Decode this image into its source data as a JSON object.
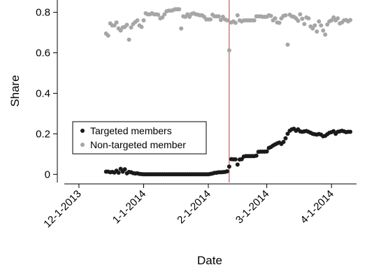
{
  "chart_data": {
    "type": "scatter",
    "xlabel": "Date",
    "ylabel": "Share",
    "x_axis_type": "date",
    "xlim": [
      "2013-11-24",
      "2014-04-13"
    ],
    "ylim": [
      -0.03,
      0.84
    ],
    "x_ticks": [
      {
        "date": "2013-12-01",
        "label": "12-1-2013"
      },
      {
        "date": "2014-01-01",
        "label": "1-1-2014"
      },
      {
        "date": "2014-02-01",
        "label": "2-1-2014"
      },
      {
        "date": "2014-03-01",
        "label": "3-1-2014"
      },
      {
        "date": "2014-04-01",
        "label": "4-1-2014"
      }
    ],
    "y_ticks": [
      {
        "value": 0,
        "label": "0"
      },
      {
        "value": 0.2,
        "label": "0.2"
      },
      {
        "value": 0.4,
        "label": "0.4"
      },
      {
        "value": 0.6,
        "label": "0.6"
      },
      {
        "value": 0.8,
        "label": "0.8"
      }
    ],
    "grid": false,
    "legend_position": "lower-left",
    "vertical_line": {
      "date": "2014-02-11",
      "color": "#cc3333"
    },
    "series": [
      {
        "name": "Targeted members",
        "color": "#1a1a1a",
        "points": [
          [
            "2013-12-14",
            0.013
          ],
          [
            "2013-12-15",
            0.013
          ],
          [
            "2013-12-16",
            0.01
          ],
          [
            "2013-12-17",
            0.012
          ],
          [
            "2013-12-18",
            0.009
          ],
          [
            "2013-12-19",
            0.018
          ],
          [
            "2013-12-20",
            0.008
          ],
          [
            "2013-12-21",
            0.027
          ],
          [
            "2013-12-22",
            0.013
          ],
          [
            "2013-12-23",
            0.025
          ],
          [
            "2013-12-24",
            0.005
          ],
          [
            "2013-12-25",
            0.012
          ],
          [
            "2013-12-26",
            0.01
          ],
          [
            "2013-12-27",
            0.006
          ],
          [
            "2013-12-28",
            0.004
          ],
          [
            "2013-12-29",
            0.005
          ],
          [
            "2013-12-30",
            0.002
          ],
          [
            "2013-12-31",
            0.001
          ],
          [
            "2014-01-01",
            0.0
          ],
          [
            "2014-01-02",
            0.0
          ],
          [
            "2014-01-03",
            0.0
          ],
          [
            "2014-01-04",
            0.0
          ],
          [
            "2014-01-05",
            0.0
          ],
          [
            "2014-01-06",
            0.0
          ],
          [
            "2014-01-07",
            0.0
          ],
          [
            "2014-01-08",
            0.0
          ],
          [
            "2014-01-09",
            0.0
          ],
          [
            "2014-01-10",
            0.0
          ],
          [
            "2014-01-11",
            0.0
          ],
          [
            "2014-01-12",
            0.0
          ],
          [
            "2014-01-13",
            0.0
          ],
          [
            "2014-01-14",
            0.0
          ],
          [
            "2014-01-15",
            0.0
          ],
          [
            "2014-01-16",
            0.0
          ],
          [
            "2014-01-17",
            0.0
          ],
          [
            "2014-01-18",
            0.0
          ],
          [
            "2014-01-19",
            0.0
          ],
          [
            "2014-01-20",
            0.0
          ],
          [
            "2014-01-21",
            0.0
          ],
          [
            "2014-01-22",
            0.0
          ],
          [
            "2014-01-23",
            0.0
          ],
          [
            "2014-01-24",
            0.0
          ],
          [
            "2014-01-25",
            0.0
          ],
          [
            "2014-01-26",
            0.0
          ],
          [
            "2014-01-27",
            0.0
          ],
          [
            "2014-01-28",
            0.0
          ],
          [
            "2014-01-29",
            0.0
          ],
          [
            "2014-01-30",
            0.0
          ],
          [
            "2014-01-31",
            0.0
          ],
          [
            "2014-02-01",
            0.0
          ],
          [
            "2014-02-02",
            0.002
          ],
          [
            "2014-02-03",
            0.004
          ],
          [
            "2014-02-04",
            0.007
          ],
          [
            "2014-02-05",
            0.008
          ],
          [
            "2014-02-06",
            0.01
          ],
          [
            "2014-02-07",
            0.01
          ],
          [
            "2014-02-08",
            0.011
          ],
          [
            "2014-02-09",
            0.012
          ],
          [
            "2014-02-10",
            0.015
          ],
          [
            "2014-02-11",
            0.038
          ],
          [
            "2014-02-12",
            0.075
          ],
          [
            "2014-02-13",
            0.074
          ],
          [
            "2014-02-14",
            0.074
          ],
          [
            "2014-02-15",
            0.048
          ],
          [
            "2014-02-16",
            0.073
          ],
          [
            "2014-02-17",
            0.075
          ],
          [
            "2014-02-18",
            0.088
          ],
          [
            "2014-02-19",
            0.09
          ],
          [
            "2014-02-20",
            0.09
          ],
          [
            "2014-02-21",
            0.09
          ],
          [
            "2014-02-22",
            0.09
          ],
          [
            "2014-02-23",
            0.09
          ],
          [
            "2014-02-24",
            0.092
          ],
          [
            "2014-02-25",
            0.111
          ],
          [
            "2014-02-26",
            0.112
          ],
          [
            "2014-02-27",
            0.112
          ],
          [
            "2014-02-28",
            0.112
          ],
          [
            "2014-03-01",
            0.113
          ],
          [
            "2014-03-02",
            0.13
          ],
          [
            "2014-03-03",
            0.135
          ],
          [
            "2014-03-04",
            0.142
          ],
          [
            "2014-03-05",
            0.148
          ],
          [
            "2014-03-06",
            0.153
          ],
          [
            "2014-03-07",
            0.157
          ],
          [
            "2014-03-08",
            0.15
          ],
          [
            "2014-03-09",
            0.16
          ],
          [
            "2014-03-10",
            0.178
          ],
          [
            "2014-03-11",
            0.2
          ],
          [
            "2014-03-12",
            0.215
          ],
          [
            "2014-03-13",
            0.222
          ],
          [
            "2014-03-14",
            0.225
          ],
          [
            "2014-03-15",
            0.215
          ],
          [
            "2014-03-16",
            0.222
          ],
          [
            "2014-03-17",
            0.212
          ],
          [
            "2014-03-18",
            0.21
          ],
          [
            "2014-03-19",
            0.212
          ],
          [
            "2014-03-20",
            0.214
          ],
          [
            "2014-03-21",
            0.21
          ],
          [
            "2014-03-22",
            0.205
          ],
          [
            "2014-03-23",
            0.2
          ],
          [
            "2014-03-24",
            0.198
          ],
          [
            "2014-03-25",
            0.196
          ],
          [
            "2014-03-26",
            0.199
          ],
          [
            "2014-03-27",
            0.196
          ],
          [
            "2014-03-28",
            0.188
          ],
          [
            "2014-03-29",
            0.19
          ],
          [
            "2014-03-30",
            0.198
          ],
          [
            "2014-03-31",
            0.205
          ],
          [
            "2014-04-01",
            0.208
          ],
          [
            "2014-04-02",
            0.213
          ],
          [
            "2014-04-03",
            0.2
          ],
          [
            "2014-04-04",
            0.21
          ],
          [
            "2014-04-05",
            0.212
          ],
          [
            "2014-04-06",
            0.215
          ],
          [
            "2014-04-07",
            0.212
          ],
          [
            "2014-04-08",
            0.208
          ],
          [
            "2014-04-09",
            0.21
          ],
          [
            "2014-04-10",
            0.21
          ]
        ]
      },
      {
        "name": "Non-targeted member",
        "color": "#a6a6a6",
        "points": [
          [
            "2013-12-14",
            0.695
          ],
          [
            "2013-12-15",
            0.685
          ],
          [
            "2013-12-16",
            0.745
          ],
          [
            "2013-12-17",
            0.735
          ],
          [
            "2013-12-18",
            0.735
          ],
          [
            "2013-12-19",
            0.75
          ],
          [
            "2013-12-20",
            0.72
          ],
          [
            "2013-12-21",
            0.71
          ],
          [
            "2013-12-22",
            0.725
          ],
          [
            "2013-12-23",
            0.728
          ],
          [
            "2013-12-24",
            0.738
          ],
          [
            "2013-12-25",
            0.665
          ],
          [
            "2013-12-26",
            0.725
          ],
          [
            "2013-12-27",
            0.742
          ],
          [
            "2013-12-28",
            0.752
          ],
          [
            "2013-12-29",
            0.76
          ],
          [
            "2013-12-30",
            0.735
          ],
          [
            "2013-12-31",
            0.728
          ],
          [
            "2014-01-01",
            0.76
          ],
          [
            "2014-01-02",
            0.795
          ],
          [
            "2014-01-03",
            0.79
          ],
          [
            "2014-01-04",
            0.79
          ],
          [
            "2014-01-05",
            0.795
          ],
          [
            "2014-01-06",
            0.79
          ],
          [
            "2014-01-07",
            0.79
          ],
          [
            "2014-01-08",
            0.788
          ],
          [
            "2014-01-09",
            0.77
          ],
          [
            "2014-01-10",
            0.775
          ],
          [
            "2014-01-11",
            0.79
          ],
          [
            "2014-01-12",
            0.805
          ],
          [
            "2014-01-13",
            0.808
          ],
          [
            "2014-01-14",
            0.808
          ],
          [
            "2014-01-15",
            0.81
          ],
          [
            "2014-01-16",
            0.815
          ],
          [
            "2014-01-17",
            0.815
          ],
          [
            "2014-01-18",
            0.815
          ],
          [
            "2014-01-19",
            0.72
          ],
          [
            "2014-01-20",
            0.78
          ],
          [
            "2014-01-21",
            0.778
          ],
          [
            "2014-01-22",
            0.79
          ],
          [
            "2014-01-23",
            0.778
          ],
          [
            "2014-01-24",
            0.792
          ],
          [
            "2014-01-25",
            0.795
          ],
          [
            "2014-01-26",
            0.79
          ],
          [
            "2014-01-27",
            0.788
          ],
          [
            "2014-01-28",
            0.785
          ],
          [
            "2014-01-29",
            0.785
          ],
          [
            "2014-01-30",
            0.778
          ],
          [
            "2014-01-31",
            0.765
          ],
          [
            "2014-02-01",
            0.765
          ],
          [
            "2014-02-02",
            0.765
          ],
          [
            "2014-02-03",
            0.788
          ],
          [
            "2014-02-04",
            0.78
          ],
          [
            "2014-02-05",
            0.78
          ],
          [
            "2014-02-06",
            0.78
          ],
          [
            "2014-02-07",
            0.762
          ],
          [
            "2014-02-08",
            0.778
          ],
          [
            "2014-02-09",
            0.765
          ],
          [
            "2014-02-10",
            0.76
          ],
          [
            "2014-02-11",
            0.612
          ],
          [
            "2014-02-12",
            0.75
          ],
          [
            "2014-02-13",
            0.755
          ],
          [
            "2014-02-14",
            0.748
          ],
          [
            "2014-02-15",
            0.785
          ],
          [
            "2014-02-16",
            0.76
          ],
          [
            "2014-02-17",
            0.755
          ],
          [
            "2014-02-18",
            0.76
          ],
          [
            "2014-02-19",
            0.76
          ],
          [
            "2014-02-20",
            0.76
          ],
          [
            "2014-02-21",
            0.76
          ],
          [
            "2014-02-22",
            0.76
          ],
          [
            "2014-02-23",
            0.76
          ],
          [
            "2014-02-24",
            0.78
          ],
          [
            "2014-02-25",
            0.78
          ],
          [
            "2014-02-26",
            0.78
          ],
          [
            "2014-02-27",
            0.778
          ],
          [
            "2014-02-28",
            0.778
          ],
          [
            "2014-03-01",
            0.778
          ],
          [
            "2014-03-02",
            0.785
          ],
          [
            "2014-03-03",
            0.782
          ],
          [
            "2014-03-04",
            0.76
          ],
          [
            "2014-03-05",
            0.77
          ],
          [
            "2014-03-06",
            0.75
          ],
          [
            "2014-03-07",
            0.748
          ],
          [
            "2014-03-08",
            0.77
          ],
          [
            "2014-03-09",
            0.782
          ],
          [
            "2014-03-10",
            0.785
          ],
          [
            "2014-03-11",
            0.64
          ],
          [
            "2014-03-12",
            0.788
          ],
          [
            "2014-03-13",
            0.78
          ],
          [
            "2014-03-14",
            0.778
          ],
          [
            "2014-03-15",
            0.77
          ],
          [
            "2014-03-16",
            0.758
          ],
          [
            "2014-03-17",
            0.79
          ],
          [
            "2014-03-18",
            0.768
          ],
          [
            "2014-03-19",
            0.742
          ],
          [
            "2014-03-20",
            0.775
          ],
          [
            "2014-03-21",
            0.77
          ],
          [
            "2014-03-22",
            0.73
          ],
          [
            "2014-03-23",
            0.72
          ],
          [
            "2014-03-24",
            0.735
          ],
          [
            "2014-03-25",
            0.705
          ],
          [
            "2014-03-26",
            0.755
          ],
          [
            "2014-03-27",
            0.735
          ],
          [
            "2014-03-28",
            0.71
          ],
          [
            "2014-03-29",
            0.69
          ],
          [
            "2014-03-30",
            0.74
          ],
          [
            "2014-03-31",
            0.755
          ],
          [
            "2014-04-01",
            0.76
          ],
          [
            "2014-04-02",
            0.775
          ],
          [
            "2014-04-03",
            0.76
          ],
          [
            "2014-04-04",
            0.77
          ],
          [
            "2014-04-05",
            0.745
          ],
          [
            "2014-04-06",
            0.75
          ],
          [
            "2014-04-07",
            0.76
          ],
          [
            "2014-04-08",
            0.762
          ],
          [
            "2014-04-09",
            0.755
          ],
          [
            "2014-04-10",
            0.762
          ]
        ]
      }
    ]
  }
}
